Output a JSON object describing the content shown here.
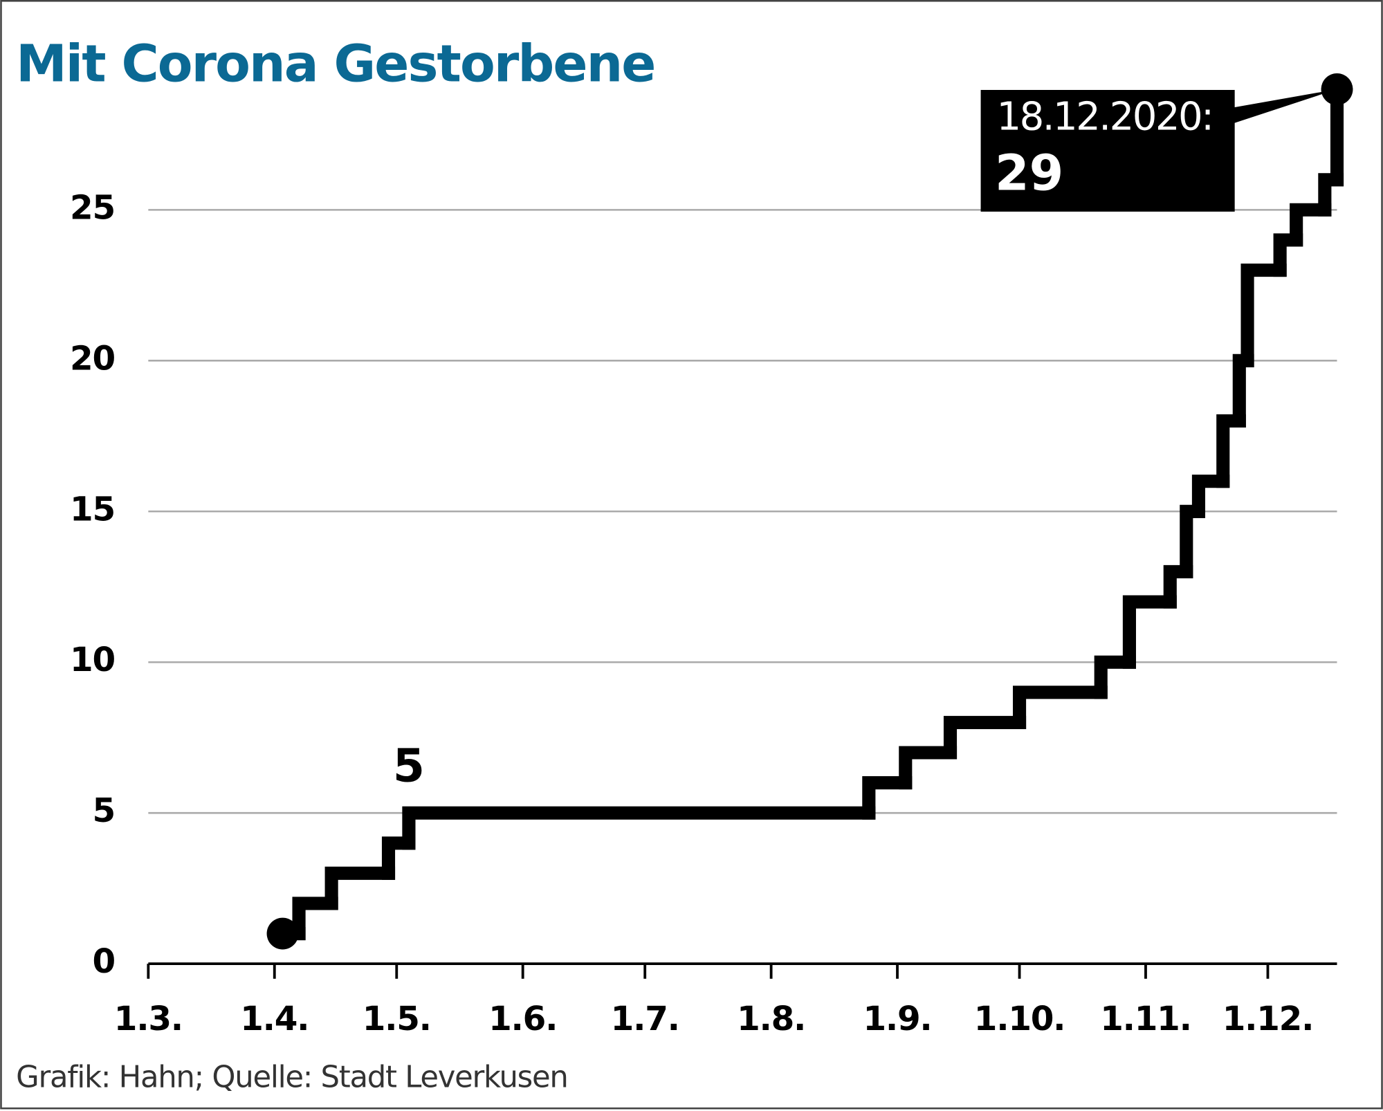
{
  "chart_data": {
    "type": "line",
    "step": "post",
    "title": "Mit Corona Gestorbene",
    "source": "Grafik: Hahn; Quelle: Stadt Leverkusen",
    "color": "#000000",
    "title_color": "#0b6994",
    "x": [
      94,
      98,
      106,
      120,
      125,
      238,
      247,
      258,
      275,
      295,
      302,
      312,
      316,
      319,
      325,
      329,
      331,
      339,
      343,
      350,
      353
    ],
    "values": [
      1,
      2,
      3,
      4,
      5,
      6,
      7,
      8,
      9,
      10,
      12,
      13,
      15,
      16,
      18,
      20,
      23,
      24,
      25,
      26,
      29
    ],
    "xlim": [
      61,
      353
    ],
    "xticks": [
      {
        "value": 61,
        "label": "1.3."
      },
      {
        "value": 92,
        "label": "1.4."
      },
      {
        "value": 122,
        "label": "1.5."
      },
      {
        "value": 153,
        "label": "1.6."
      },
      {
        "value": 183,
        "label": "1.7."
      },
      {
        "value": 214,
        "label": "1.8."
      },
      {
        "value": 245,
        "label": "1.9."
      },
      {
        "value": 275,
        "label": "1.10."
      },
      {
        "value": 306,
        "label": "1.11."
      },
      {
        "value": 336,
        "label": "1.12."
      }
    ],
    "ylim": [
      0,
      30
    ],
    "yticks": [
      0,
      5,
      10,
      15,
      20,
      25
    ],
    "grid": true,
    "annotations": [
      {
        "value": 5
      },
      {
        "label": "18.12.2020:",
        "value": 29
      }
    ]
  }
}
